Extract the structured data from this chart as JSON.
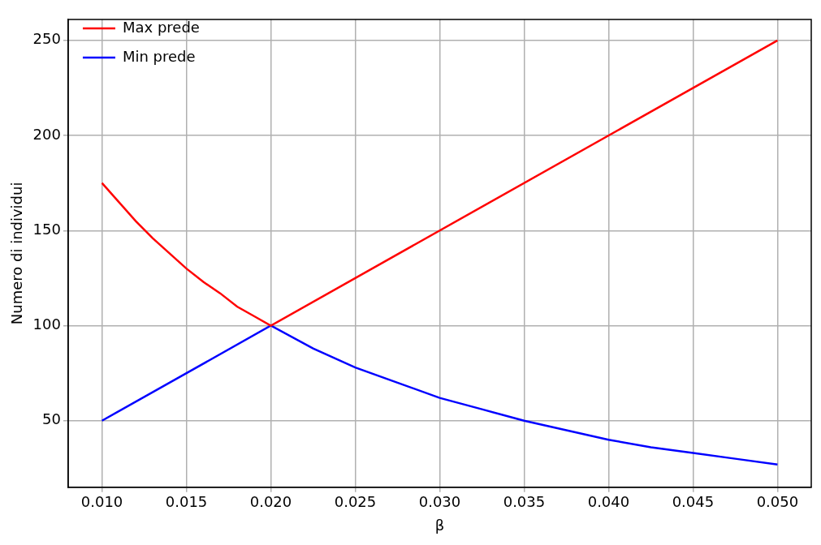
{
  "chart_data": {
    "type": "line",
    "xlabel": "β",
    "ylabel": "Numero di individui",
    "xlim": [
      0.008,
      0.052
    ],
    "xticks": [
      {
        "value": 0.01,
        "label": "0.010"
      },
      {
        "value": 0.015,
        "label": "0.015"
      },
      {
        "value": 0.02,
        "label": "0.020"
      },
      {
        "value": 0.025,
        "label": "0.025"
      },
      {
        "value": 0.03,
        "label": "0.030"
      },
      {
        "value": 0.035,
        "label": "0.035"
      },
      {
        "value": 0.04,
        "label": "0.040"
      },
      {
        "value": 0.045,
        "label": "0.045"
      },
      {
        "value": 0.05,
        "label": "0.050"
      }
    ],
    "ylim": [
      15,
      261
    ],
    "yticks": [
      50,
      100,
      150,
      200,
      250
    ],
    "grid": true,
    "legend": "top left",
    "series": [
      {
        "name": "Max prede",
        "color": "#ff0000",
        "x": [
          0.01,
          0.011,
          0.012,
          0.013,
          0.014,
          0.015,
          0.016,
          0.017,
          0.018,
          0.019,
          0.02,
          0.05
        ],
        "values": [
          175,
          165,
          155,
          146,
          138,
          130,
          123,
          117,
          110,
          105,
          100,
          250
        ]
      },
      {
        "name": "Min prede",
        "color": "#0000ff",
        "x": [
          0.01,
          0.02,
          0.0225,
          0.025,
          0.0275,
          0.03,
          0.0325,
          0.035,
          0.0375,
          0.04,
          0.0425,
          0.045,
          0.0475,
          0.05
        ],
        "values": [
          50,
          100,
          88,
          78,
          70,
          62,
          56,
          50,
          45,
          40,
          36,
          33,
          30,
          27
        ]
      }
    ]
  }
}
